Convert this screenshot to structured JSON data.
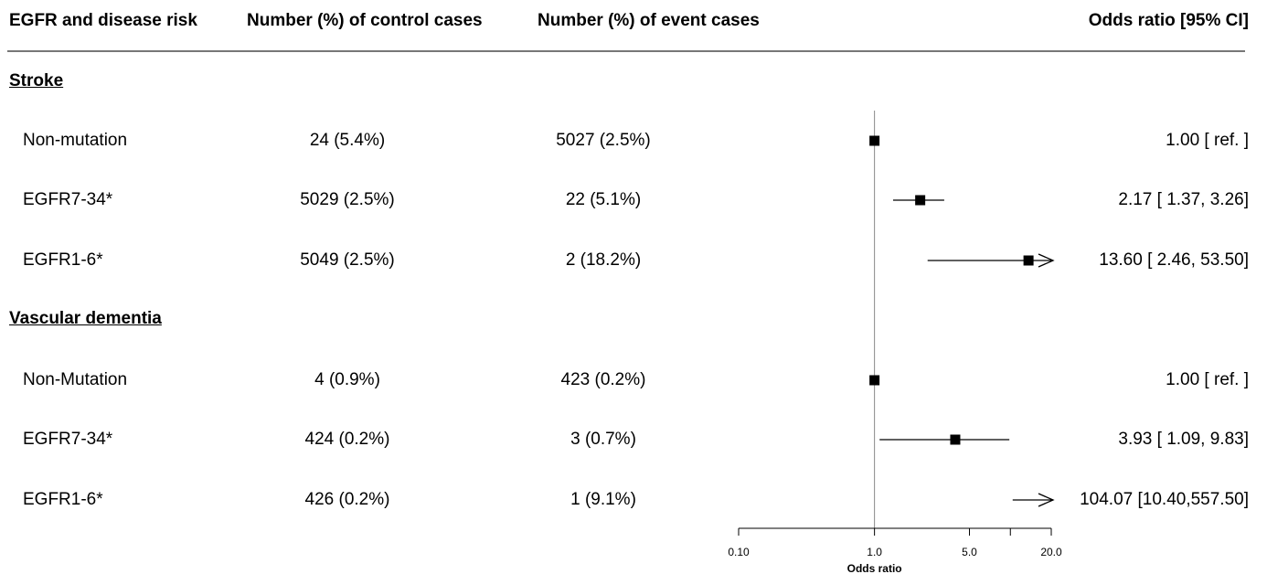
{
  "header": {
    "col1": "EGFR and disease risk",
    "col2": "Number (%) of control cases",
    "col3": "Number (%) of event cases",
    "col4": "Odds ratio [95% CI]"
  },
  "sections": [
    {
      "title": "Stroke",
      "rows": [
        {
          "name": "Non-mutation",
          "control": "24 (5.4%)",
          "event": "5027 (2.5%)",
          "or_text": "1.00 [ ref. ]"
        },
        {
          "name": "EGFR7-34*",
          "control": "5029 (2.5%)",
          "event": "22 (5.1%)",
          "or_text": "2.17 [ 1.37,  3.26]"
        },
        {
          "name": "EGFR1-6*",
          "control": "5049 (2.5%)",
          "event": "2 (18.2%)",
          "or_text": "13.60 [ 2.46, 53.50]"
        }
      ]
    },
    {
      "title": "Vascular dementia",
      "rows": [
        {
          "name": "Non-Mutation",
          "control": "4 (0.9%)",
          "event": "423 (0.2%)",
          "or_text": "1.00 [ ref. ]"
        },
        {
          "name": "EGFR7-34*",
          "control": "424 (0.2%)",
          "event": "3 (0.7%)",
          "or_text": "3.93 [ 1.09,  9.83]"
        },
        {
          "name": "EGFR1-6*",
          "control": "426 (0.2%)",
          "event": "1 (9.1%)",
          "or_text": "104.07 [10.40,557.50]"
        }
      ]
    }
  ],
  "chart_data": {
    "type": "forest",
    "xlabel": "Odds ratio",
    "x_scale": "log",
    "xlim": [
      0.1,
      20.0
    ],
    "xticks": [
      0.1,
      1.0,
      5.0,
      10.0,
      20.0
    ],
    "xtick_labels": [
      "0.10",
      "1.0",
      "5.0",
      "",
      "20.0"
    ],
    "reference_line": 1.0,
    "points": [
      {
        "label": "Non-mutation",
        "group": "Stroke",
        "or": 1.0,
        "lo": 1.0,
        "hi": 1.0
      },
      {
        "label": "EGFR7-34*",
        "group": "Stroke",
        "or": 2.17,
        "lo": 1.37,
        "hi": 3.26
      },
      {
        "label": "EGFR1-6*",
        "group": "Stroke",
        "or": 13.6,
        "lo": 2.46,
        "hi": 53.5
      },
      {
        "label": "Non-Mutation",
        "group": "Vascular dementia",
        "or": 1.0,
        "lo": 1.0,
        "hi": 1.0
      },
      {
        "label": "EGFR7-34*",
        "group": "Vascular dementia",
        "or": 3.93,
        "lo": 1.09,
        "hi": 9.83
      },
      {
        "label": "EGFR1-6*",
        "group": "Vascular dementia",
        "or": 104.07,
        "lo": 10.4,
        "hi": 557.5
      }
    ]
  }
}
